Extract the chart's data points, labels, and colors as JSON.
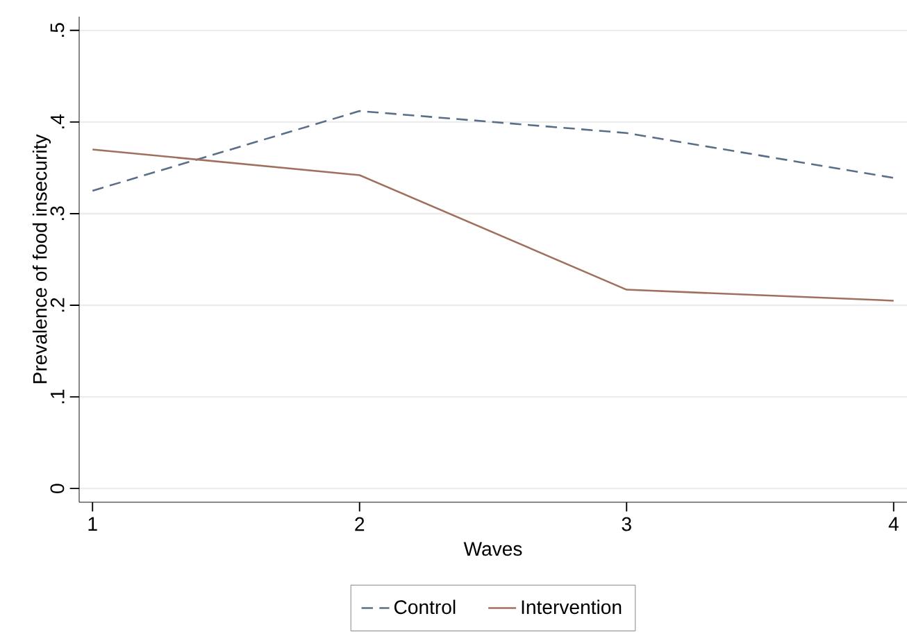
{
  "chart_data": {
    "type": "line",
    "xlabel": "Waves",
    "ylabel": "Prevalence of food insecurity",
    "x": [
      1,
      2,
      3,
      4
    ],
    "series": [
      {
        "name": "Control",
        "color": "#5a6e87",
        "line_style": "dashed",
        "values": [
          0.325,
          0.412,
          0.388,
          0.339
        ]
      },
      {
        "name": "Intervention",
        "color": "#a0705f",
        "line_style": "solid",
        "values": [
          0.37,
          0.342,
          0.217,
          0.205
        ]
      }
    ],
    "xlim": [
      0.95,
      4.05
    ],
    "ylim": [
      -0.015,
      0.515
    ],
    "xticks": [
      1,
      2,
      3,
      4
    ],
    "yticks": [
      0,
      {
        "value": 0.1,
        "label": ".1"
      },
      {
        "value": 0.2,
        "label": ".2"
      },
      {
        "value": 0.3,
        "label": ".3"
      },
      {
        "value": 0.4,
        "label": ".4"
      },
      {
        "value": 0.5,
        "label": ".5"
      }
    ],
    "grid": "y",
    "legend": "bottom",
    "marker": "none"
  }
}
